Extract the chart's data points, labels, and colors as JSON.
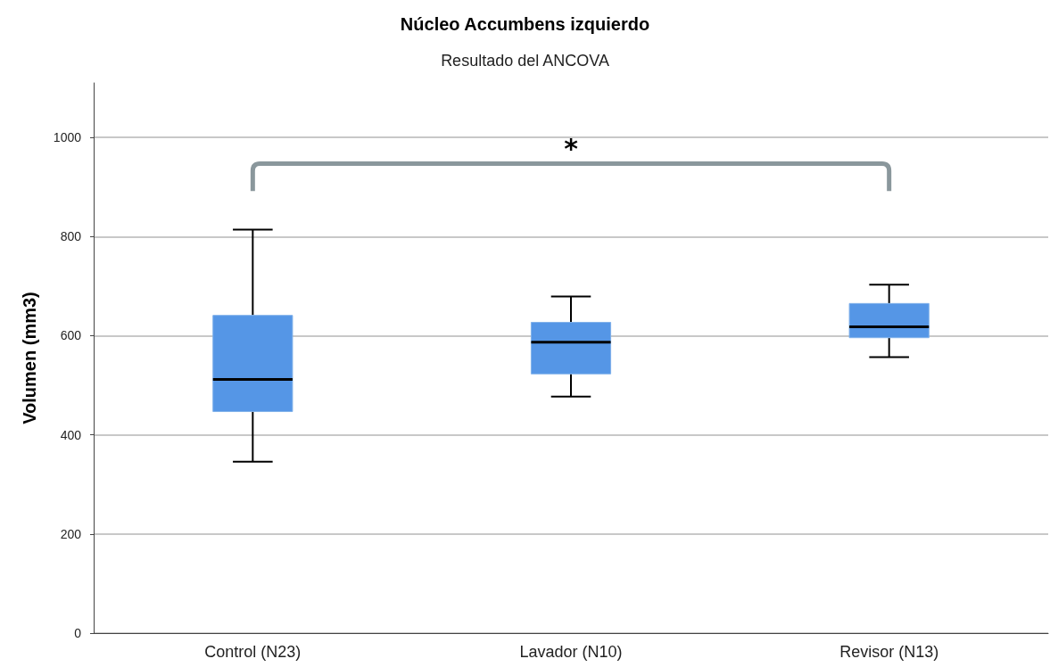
{
  "chart_data": {
    "type": "box",
    "title": "Núcleo Accumbens izquierdo",
    "subtitle": "Resultado del ANCOVA",
    "ylabel": "Volumen (mm3)",
    "categories": [
      "Control (N23)",
      "Lavador (N10)",
      "Revisor (N13)"
    ],
    "series": [
      {
        "color": "#5596e6",
        "boxes": [
          {
            "low": 346,
            "q1": 447,
            "median": 512,
            "q3": 641,
            "high": 814
          },
          {
            "low": 477,
            "q1": 523,
            "median": 587,
            "q3": 627,
            "high": 679
          },
          {
            "low": 557,
            "q1": 596,
            "median": 618,
            "q3": 665,
            "high": 703
          }
        ]
      }
    ],
    "ylim": [
      0,
      1110
    ],
    "yticks": [
      0,
      200,
      400,
      600,
      800,
      1000
    ],
    "grid": "y",
    "annotations": [
      "*"
    ]
  }
}
